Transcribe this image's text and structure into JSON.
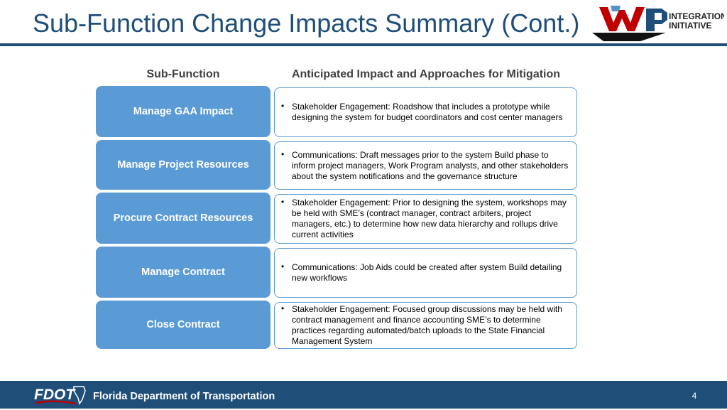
{
  "title": "Sub-Function Change Impacts Summary (Cont.)",
  "logo": {
    "line1": "INTEGRATION",
    "line2": "INITIATIVE"
  },
  "headers": {
    "sub_function": "Sub-Function",
    "impact": "Anticipated Impact and Approaches for Mitigation"
  },
  "rows": [
    {
      "sub_function": "Manage GAA Impact",
      "impact": "Stakeholder Engagement: Roadshow that includes a prototype while designing the system for budget coordinators and cost center managers"
    },
    {
      "sub_function": "Manage Project Resources",
      "impact": "Communications: Draft messages prior to the system Build phase to inform project managers, Work Program analysts, and other stakeholders about the system notifications and the governance structure"
    },
    {
      "sub_function": "Procure Contract Resources",
      "impact": "Stakeholder Engagement: Prior to designing the system, workshops may be held with SME’s (contract manager, contract arbiters, project managers, etc.) to determine how new data hierarchy and rollups drive current activities"
    },
    {
      "sub_function": "Manage Contract",
      "impact": "Communications: Job Aids could be created after system Build detailing new workflows"
    },
    {
      "sub_function": "Close Contract",
      "impact": "Stakeholder Engagement: Focused group discussions may be held with contract management and finance accounting SME’s to determine practices regarding automated/batch uploads to the State Financial Management System"
    }
  ],
  "footer": {
    "logo_text": "FDOT",
    "org": "Florida Department of Transportation",
    "page": "4"
  },
  "colors": {
    "primary": "#1f4e79",
    "accent": "#5b9bd5",
    "red": "#c00000"
  }
}
